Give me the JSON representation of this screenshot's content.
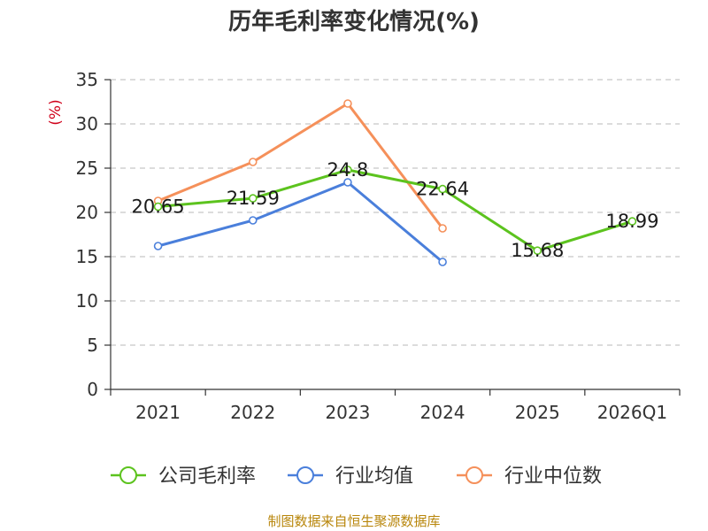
{
  "title": "历年毛利率变化情况(%)",
  "source": "制图数据来自恒生聚源数据库",
  "chart_data": {
    "type": "line",
    "title": "历年毛利率变化情况(%)",
    "ylabel": "(%)",
    "ylim": [
      0,
      35
    ],
    "yticks": [
      0,
      5,
      10,
      15,
      20,
      25,
      30,
      35
    ],
    "categories": [
      "2021",
      "2022",
      "2023",
      "2024",
      "2025",
      "2026Q1"
    ],
    "grid": true,
    "legend_position": "bottom",
    "series": [
      {
        "name": "公司毛利率",
        "color": "#5cc31e",
        "values": [
          20.65,
          21.59,
          24.8,
          22.64,
          15.68,
          18.99
        ],
        "show_labels": true
      },
      {
        "name": "行业均值",
        "color": "#4a7fdb",
        "values": [
          16.2,
          19.1,
          23.4,
          14.4,
          null,
          null
        ],
        "show_labels": false
      },
      {
        "name": "行业中位数",
        "color": "#f5905a",
        "values": [
          21.3,
          25.7,
          32.3,
          18.2,
          null,
          null
        ],
        "show_labels": false
      }
    ]
  }
}
